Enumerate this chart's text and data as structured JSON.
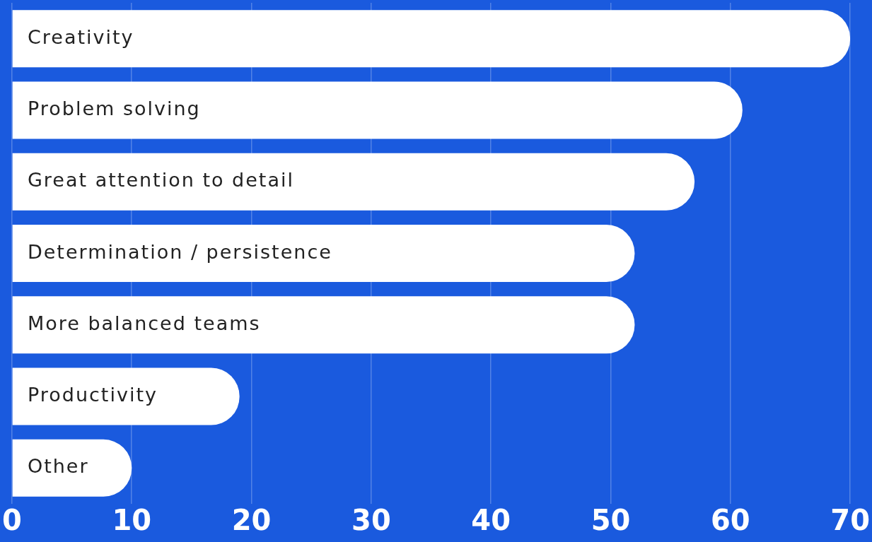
{
  "chart_data": {
    "type": "bar",
    "orientation": "horizontal",
    "categories": [
      "Creativity",
      "Problem solving",
      "Great attention to detail",
      "Determination / persistence",
      "More balanced teams",
      "Productivity",
      "Other"
    ],
    "values": [
      70,
      61,
      57,
      52,
      52,
      19,
      10
    ],
    "color": "#ffffff",
    "xlim": [
      0,
      70
    ],
    "xticks": [
      0,
      10,
      20,
      30,
      40,
      50,
      60,
      70
    ],
    "grid": "x"
  }
}
